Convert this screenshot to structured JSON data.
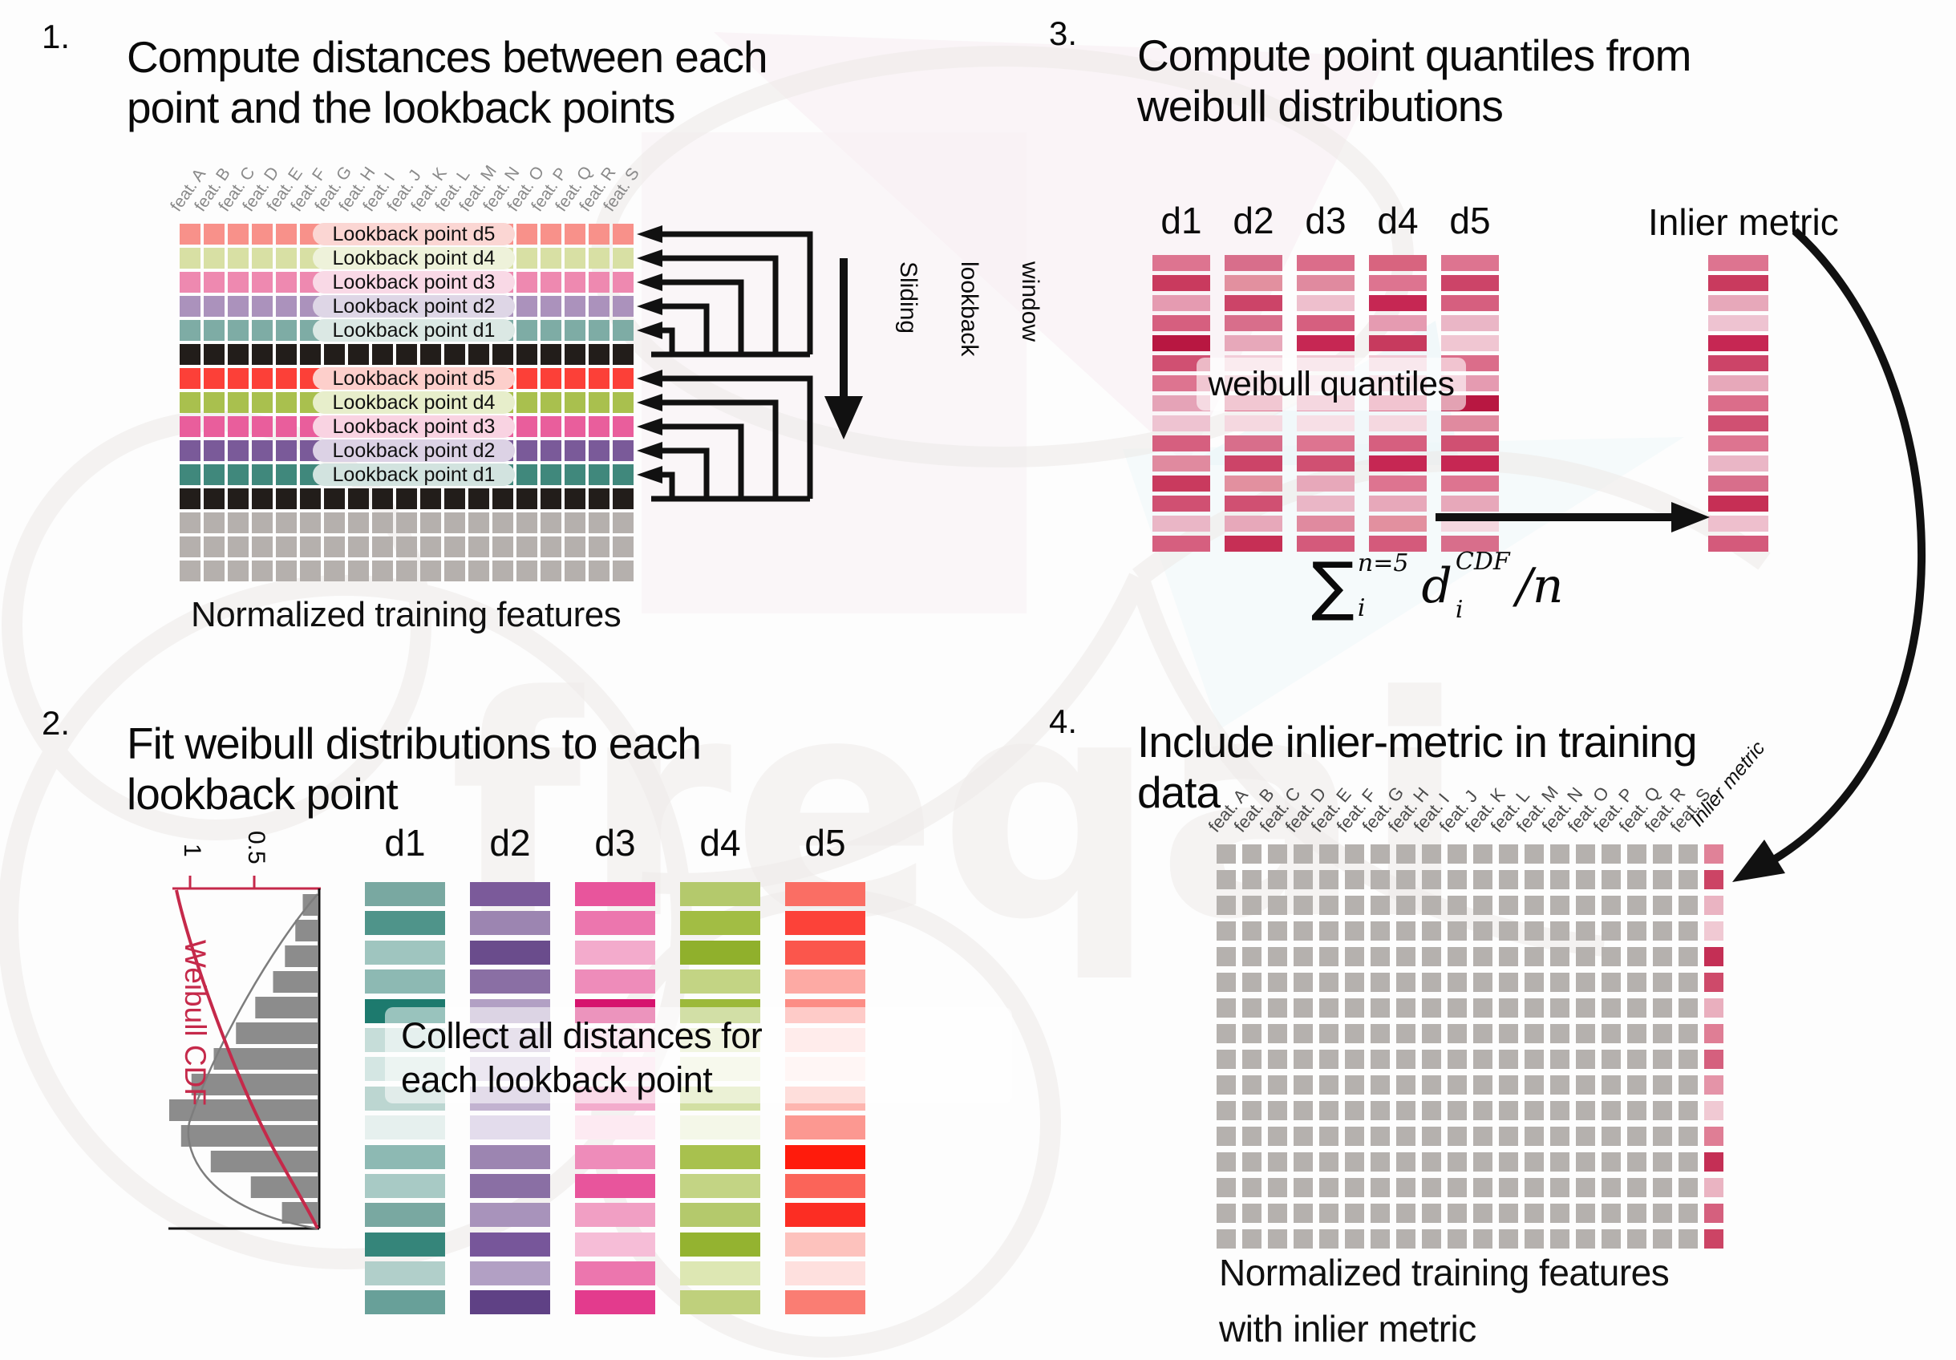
{
  "sections": {
    "s1": {
      "number": "1.",
      "title1": "Compute distances between each",
      "title2": "point and the lookback points",
      "caption": "Normalized training features"
    },
    "s2": {
      "number": "2.",
      "title1": "Fit weibull distributions to each",
      "title2": "lookback point",
      "note1": "Collect all distances for",
      "note2": "each lookback point"
    },
    "s3": {
      "number": "3.",
      "title1": "Compute point quantiles from",
      "title2": "weibull distributions",
      "note": "weibull quantiles",
      "inlier_label": "Inlier metric"
    },
    "s4": {
      "number": "4.",
      "title1": "Include inlier-metric in training",
      "title2": "data",
      "caption1": "Normalized training features",
      "caption2": "with inlier metric",
      "inlier_label": "Inlier metric"
    }
  },
  "features": [
    "feat. A",
    "feat. B",
    "feat. C",
    "feat. D",
    "feat. E",
    "feat. F",
    "feat. G",
    "feat. H",
    "feat. I",
    "feat. J",
    "feat. K",
    "feat. L",
    "feat. M",
    "feat. N",
    "feat. O",
    "feat. P",
    "feat. Q",
    "feat. R",
    "feat. S"
  ],
  "matrix1": {
    "rows": [
      {
        "color": "#f8918a",
        "label": "Lookback point d5",
        "pill": "#fbd6d3"
      },
      {
        "color": "#d8e0a4",
        "label": "Lookback point d4",
        "pill": "#eef2da"
      },
      {
        "color": "#ee89b0",
        "label": "Lookback point d3",
        "pill": "#f9d9e6"
      },
      {
        "color": "#ab92bc",
        "label": "Lookback point d2",
        "pill": "#ded6e6"
      },
      {
        "color": "#7eaca5",
        "label": "Lookback point d1",
        "pill": "#dbe8e4"
      },
      {
        "color": "#221d1a"
      },
      {
        "color": "#fc4038",
        "label": "Lookback point d5",
        "pill": "#fdcfcb"
      },
      {
        "color": "#a9c04e",
        "label": "Lookback point d4",
        "pill": "#e7eecb"
      },
      {
        "color": "#e95e9c",
        "label": "Lookback point d3",
        "pill": "#f9d3e2"
      },
      {
        "color": "#7a5a99",
        "label": "Lookback point d2",
        "pill": "#dcd2e5"
      },
      {
        "color": "#40887c",
        "label": "Lookback point d1",
        "pill": "#d2e3df"
      },
      {
        "color": "#221d1a"
      },
      {
        "color": "#b5b0ad"
      },
      {
        "color": "#b5b0ad"
      },
      {
        "color": "#b5b0ad"
      }
    ]
  },
  "slider": {
    "lines": [
      "Sliding",
      "lookback",
      "window"
    ]
  },
  "weibull": {
    "label": "Weibull CDF",
    "tick1": "1",
    "tick2": "0.5",
    "hist": [
      0.1,
      0.15,
      0.22,
      0.3,
      0.42,
      0.55,
      0.7,
      0.85,
      1.0,
      0.92,
      0.72,
      0.45,
      0.24
    ],
    "colors": {
      "bar": "#8c8c8c",
      "cdf": "#c5294a",
      "density": "#7d7d7d"
    }
  },
  "dist_headers": [
    "d1",
    "d2",
    "d3",
    "d4",
    "d5"
  ],
  "step2_columns": {
    "d1": [
      "#79a8a1",
      "#4f948a",
      "#9fc5bf",
      "#8db9b3",
      "#1d7a6e",
      "#c6ddd9",
      "#d4e6e3",
      "#bcd6d1",
      "#e6f0ee",
      "#8db9b3",
      "#a8cac5",
      "#79a8a1",
      "#35857a",
      "#b1cfca",
      "#68a099"
    ],
    "d2": [
      "#7b5a9a",
      "#9c85b1",
      "#6a4c8c",
      "#8a6fa4",
      "#b2a0c4",
      "#cabcd6",
      "#d6cbe0",
      "#c2b2d0",
      "#e3dcec",
      "#9c85b1",
      "#8a6fa4",
      "#a893bb",
      "#77569a",
      "#b2a0c4",
      "#5f4185"
    ],
    "d3": [
      "#e8559c",
      "#ec76ae",
      "#f3abcc",
      "#ee8cba",
      "#d6136e",
      "#f9d0e3",
      "#fbdeeb",
      "#f3abcc",
      "#fdeaf2",
      "#ee8cba",
      "#e8559c",
      "#f19fc4",
      "#f6bdd7",
      "#ec76ae",
      "#e33b8d"
    ],
    "d4": [
      "#b4c96c",
      "#a2bd44",
      "#90b02c",
      "#c3d484",
      "#9cb93a",
      "#e0e9bd",
      "#edf2d8",
      "#d2dfa2",
      "#f4f7e8",
      "#a8c14e",
      "#c3d484",
      "#b4c96c",
      "#94b330",
      "#dde7b3",
      "#bfd07c"
    ],
    "d5": [
      "#fa6e64",
      "#fc4239",
      "#fb564c",
      "#fdaaa4",
      "#fc8d85",
      "#fed6d3",
      "#feeae8",
      "#fdb5af",
      "#fc9891",
      "#ff1b0c",
      "#fb6459",
      "#fc2d23",
      "#fdc2bd",
      "#fee0de",
      "#fa7d73"
    ]
  },
  "step3_columns": {
    "d1": [
      "#dd7490",
      "#c93a5e",
      "#e59bb1",
      "#d65f7f",
      "#b81741",
      "#d05072",
      "#dd7490",
      "#e5a3b7",
      "#eec3d1",
      "#d65f7f",
      "#e08a9f",
      "#c93a5e",
      "#d05072",
      "#eab6c6",
      "#d65f7f"
    ],
    "d2": [
      "#d86e8b",
      "#e2909f",
      "#cc4468",
      "#d86e8b",
      "#e7a8ba",
      "#f2cdd8",
      "#eab6c6",
      "#dd7490",
      "#f5d8e0",
      "#d86e8b",
      "#cc4468",
      "#e2909f",
      "#d05072",
      "#e7a8ba",
      "#c62f55"
    ],
    "d3": [
      "#db6d8a",
      "#e08a9f",
      "#eebfcd",
      "#d65f7f",
      "#c62753",
      "#f0c6d2",
      "#f5d8e0",
      "#e59bb1",
      "#f7dfe6",
      "#dd7490",
      "#d05072",
      "#e7a8ba",
      "#eab6c6",
      "#e08a9f",
      "#d45a7b"
    ],
    "d4": [
      "#d8647f",
      "#dd7490",
      "#c62753",
      "#e59bb1",
      "#c73a5e",
      "#f0c6d2",
      "#eebfcd",
      "#db6d8a",
      "#f5d8e0",
      "#d65f7f",
      "#c62753",
      "#dd7490",
      "#e7a8ba",
      "#e2909f",
      "#d45a7b"
    ],
    "d5": [
      "#dd7490",
      "#cc4468",
      "#d65f7f",
      "#eab6c6",
      "#f0c6d2",
      "#db6d8a",
      "#e59bb1",
      "#b81741",
      "#e08a9f",
      "#d05072",
      "#c62753",
      "#dd7490",
      "#e7a8ba",
      "#f5d8e0",
      "#d86e8b"
    ],
    "inlier": [
      "#dd7490",
      "#c93a5e",
      "#e7a8ba",
      "#eec3d1",
      "#c62753",
      "#cc4468",
      "#e7a8ba",
      "#db6d8a",
      "#d05072",
      "#dd7490",
      "#eab6c6",
      "#d86e8b",
      "#c62f55",
      "#eebfcd",
      "#d45a7b"
    ]
  },
  "formula": {
    "sum": "∑",
    "sum_sup": "n=5",
    "sum_sub": "i",
    "var": "d",
    "var_sup": "CDF",
    "var_sub": "i",
    "divisor": "/n"
  },
  "step4": {
    "grid_color": "#b5b1ae",
    "rows": 16,
    "cols": 20,
    "inlier": [
      "#e08298",
      "#cc4465",
      "#eab4c2",
      "#f0c9d3",
      "#c42f55",
      "#ce4a6a",
      "#e9afbe",
      "#df7e95",
      "#d5607e",
      "#e494a8",
      "#f0c9d3",
      "#df7e95",
      "#c42f55",
      "#eab4c2",
      "#d5607e",
      "#cc4465"
    ]
  },
  "arrow_color": "#111111"
}
